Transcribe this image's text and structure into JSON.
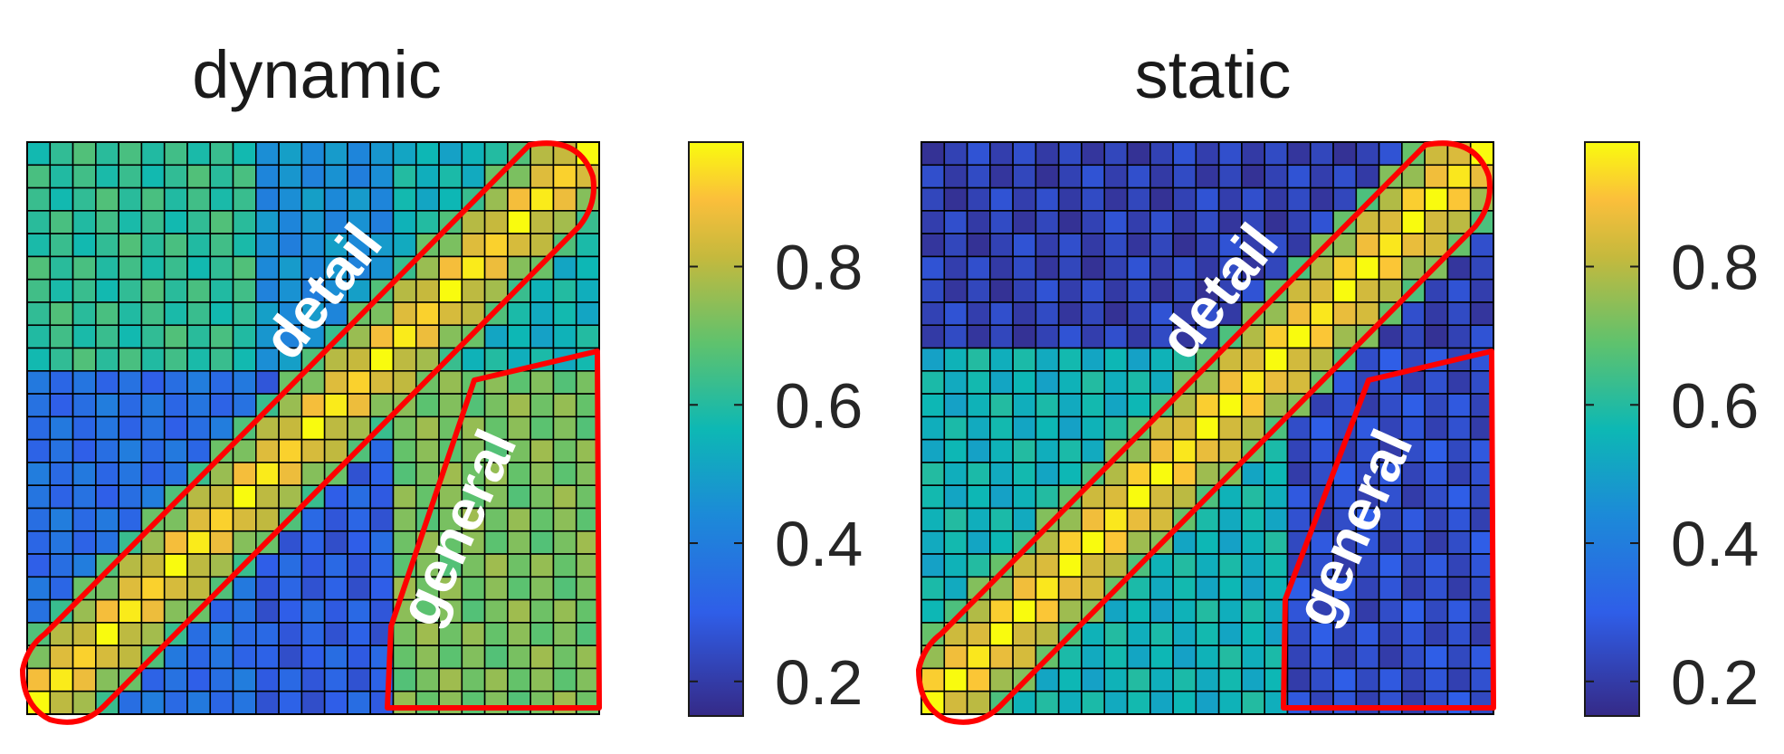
{
  "chart_data": [
    {
      "type": "heatmap",
      "title": "dynamic",
      "n": 25,
      "colorbar": {
        "ticks": [
          0.2,
          0.4,
          0.6,
          0.8
        ],
        "range": [
          0.15,
          0.98
        ]
      },
      "field": {
        "base": 0.5,
        "slope": 0.55,
        "floor": 0.92,
        "ceiling": 0.92,
        "blocks": [
          {
            "r": [
              0,
              9
            ],
            "c": [
              0,
              9
            ],
            "v": 0.62
          },
          {
            "r": [
              0,
              9
            ],
            "c": [
              10,
              15
            ],
            "v": 0.45
          },
          {
            "r": [
              0,
              9
            ],
            "c": [
              16,
              24
            ],
            "v": 0.55
          },
          {
            "r": [
              10,
              24
            ],
            "c": [
              0,
              9
            ],
            "v": 0.35
          },
          {
            "r": [
              10,
              24
            ],
            "c": [
              10,
              15
            ],
            "v": 0.3
          },
          {
            "r": [
              10,
              24
            ],
            "c": [
              16,
              24
            ],
            "v": 0.72
          }
        ]
      },
      "regions": [
        {
          "name": "detail",
          "label": "detail"
        },
        {
          "name": "general",
          "label": "general"
        }
      ]
    },
    {
      "type": "heatmap",
      "title": "static",
      "n": 25,
      "colorbar": {
        "ticks": [
          0.2,
          0.4,
          0.6,
          0.8
        ],
        "range": [
          0.15,
          0.98
        ]
      },
      "field": {
        "base": 0.22,
        "slope": 0.35,
        "floor": 0.95,
        "ceiling": 0.95,
        "blocks": [
          {
            "r": [
              0,
              8
            ],
            "c": [
              0,
              24
            ],
            "v": 0.22
          },
          {
            "r": [
              9,
              24
            ],
            "c": [
              0,
              15
            ],
            "v": 0.55
          },
          {
            "r": [
              9,
              24
            ],
            "c": [
              16,
              24
            ],
            "v": 0.25
          }
        ]
      },
      "regions": [
        {
          "name": "detail",
          "label": "detail"
        },
        {
          "name": "general",
          "label": "general"
        }
      ]
    }
  ]
}
